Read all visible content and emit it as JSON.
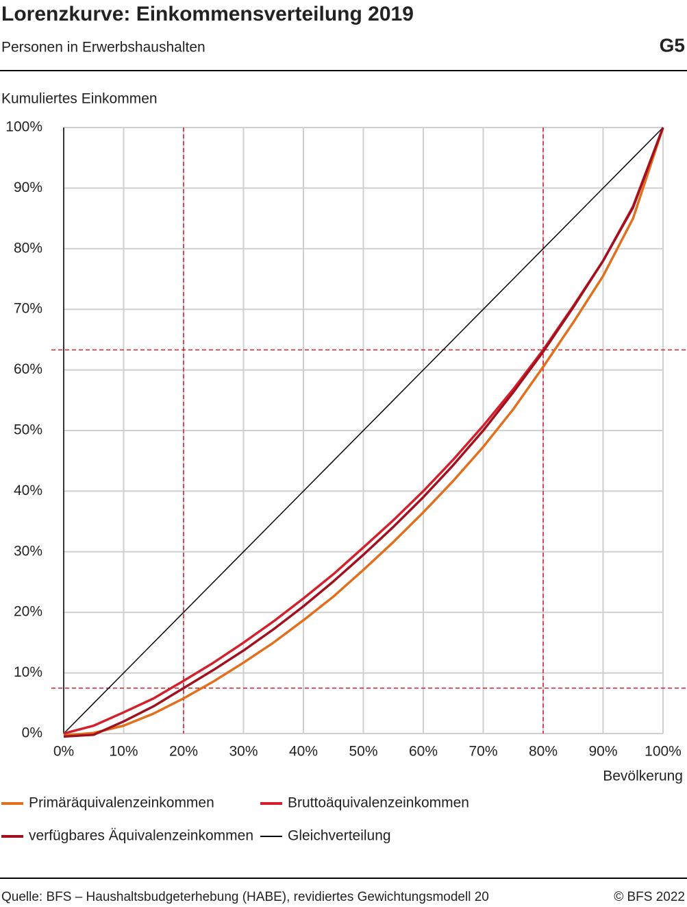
{
  "chart_data": {
    "type": "line",
    "title": "Lorenzkurve: Einkommensverteilung 2019",
    "subtitle": "Personen in Erwerbshaushalten",
    "chart_id": "G5",
    "y_label": "Kumuliertes Einkommen",
    "x_label": "Bevölkerung",
    "source": "Quelle: BFS – Haushaltsbudgeterhebung (HABE), revidiertes Gewichtungsmodell 20",
    "copyright": "© BFS 2022",
    "x": [
      0,
      5,
      10,
      15,
      20,
      25,
      30,
      35,
      40,
      45,
      50,
      55,
      60,
      65,
      70,
      75,
      80,
      85,
      90,
      95,
      100
    ],
    "series": [
      {
        "name": "Primäräquivalenzeinkommen",
        "color": "#e0701e",
        "values": [
          -0.3,
          0.1,
          1.3,
          3.3,
          5.8,
          8.6,
          11.7,
          15,
          18.7,
          22.6,
          27,
          31.6,
          36.5,
          41.7,
          47.3,
          53.5,
          60.5,
          67.8,
          75.5,
          85,
          100
        ]
      },
      {
        "name": "Bruttoäquivalenzeinkommen",
        "color": "#d2202c",
        "values": [
          0,
          1.3,
          3.5,
          5.8,
          8.7,
          11.7,
          15,
          18.5,
          22.3,
          26.3,
          30.7,
          35.2,
          40,
          45.2,
          50.8,
          56.8,
          63.3,
          70.5,
          78,
          87,
          100
        ]
      },
      {
        "name": "verfügbares Äquivalenzeinkommen",
        "color": "#a0101e",
        "values": [
          -0.5,
          -0.2,
          2,
          4.5,
          7.5,
          10.5,
          13.7,
          17.2,
          21,
          25.1,
          29.5,
          34.1,
          39,
          44.3,
          50,
          56.3,
          63,
          70.3,
          78,
          86.8,
          100
        ]
      },
      {
        "name": "Gleichverteilung",
        "color": "#000000",
        "values": [
          0,
          5,
          10,
          15,
          20,
          25,
          30,
          35,
          40,
          45,
          50,
          55,
          60,
          65,
          70,
          75,
          80,
          85,
          90,
          95,
          100
        ]
      }
    ],
    "reference_lines": {
      "x": [
        20,
        80
      ],
      "y": [
        7.5,
        63.3
      ],
      "color": "#d2202c"
    },
    "xlim": [
      0,
      100
    ],
    "ylim": [
      0,
      100
    ],
    "xticks": [
      {
        "value": 0,
        "label": "0%"
      },
      {
        "value": 10,
        "label": "10%"
      },
      {
        "value": 20,
        "label": "20%"
      },
      {
        "value": 30,
        "label": "30%"
      },
      {
        "value": 40,
        "label": "40%"
      },
      {
        "value": 50,
        "label": "50%"
      },
      {
        "value": 60,
        "label": "60%"
      },
      {
        "value": 70,
        "label": "70%"
      },
      {
        "value": 80,
        "label": "80%"
      },
      {
        "value": 90,
        "label": "90%"
      },
      {
        "value": 100,
        "label": "100%"
      }
    ],
    "yticks": [
      {
        "value": 0,
        "label": "0%"
      },
      {
        "value": 10,
        "label": "10%"
      },
      {
        "value": 20,
        "label": "20%"
      },
      {
        "value": 30,
        "label": "30%"
      },
      {
        "value": 40,
        "label": "40%"
      },
      {
        "value": 50,
        "label": "50%"
      },
      {
        "value": 60,
        "label": "60%"
      },
      {
        "value": 70,
        "label": "70%"
      },
      {
        "value": 80,
        "label": "80%"
      },
      {
        "value": 90,
        "label": "90%"
      },
      {
        "value": 100,
        "label": "100%"
      }
    ],
    "grid": true
  }
}
